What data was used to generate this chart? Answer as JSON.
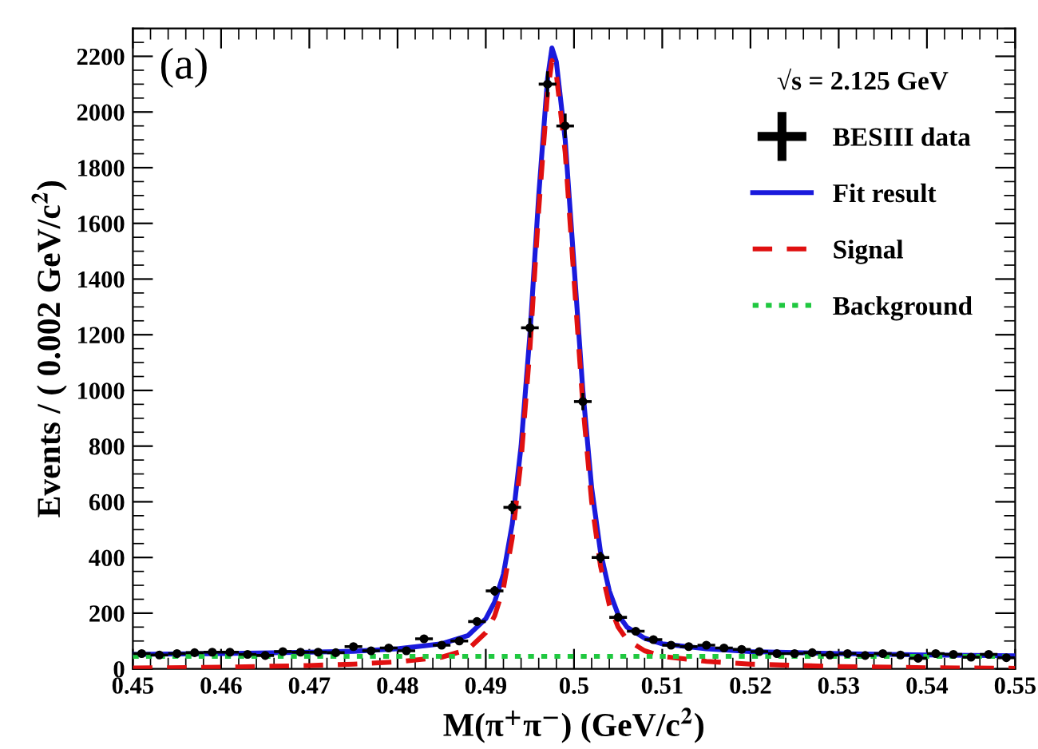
{
  "chart_data": {
    "type": "line",
    "xlabel": "M(π$^{+}$π$^{−}$) (GeV/c$^{2}$)",
    "ylabel": "Events / ( 0.002 GeV/c$^{2}$)",
    "legend_title": "√s = 2.125 GeV",
    "annotations": [
      "(a)"
    ],
    "xlim": [
      0.45,
      0.55
    ],
    "ylim": [
      0,
      2300
    ],
    "xticks": [
      0.45,
      0.46,
      0.47,
      0.48,
      0.49,
      0.5,
      0.51,
      0.52,
      0.53,
      0.54,
      0.55
    ],
    "yticks": [
      0,
      200,
      400,
      600,
      800,
      1000,
      1200,
      1400,
      1600,
      1800,
      2000,
      2200
    ],
    "grid": false,
    "legend": "top right",
    "series": [
      {
        "name": "BESIII data",
        "type": "scatter",
        "color": "#000000",
        "marker": "circle",
        "x": [
          0.451,
          0.453,
          0.455,
          0.457,
          0.459,
          0.461,
          0.463,
          0.465,
          0.467,
          0.469,
          0.471,
          0.473,
          0.475,
          0.477,
          0.479,
          0.481,
          0.483,
          0.485,
          0.487,
          0.489,
          0.491,
          0.493,
          0.495,
          0.497,
          0.499,
          0.501,
          0.503,
          0.505,
          0.507,
          0.509,
          0.511,
          0.513,
          0.515,
          0.517,
          0.519,
          0.521,
          0.523,
          0.525,
          0.527,
          0.529,
          0.531,
          0.533,
          0.535,
          0.537,
          0.539,
          0.541,
          0.543,
          0.545,
          0.547,
          0.549
        ],
        "values": [
          55,
          50,
          55,
          58,
          60,
          60,
          52,
          48,
          62,
          60,
          60,
          58,
          80,
          65,
          75,
          65,
          108,
          85,
          100,
          170,
          280,
          580,
          1225,
          2100,
          1950,
          960,
          400,
          185,
          135,
          105,
          85,
          80,
          85,
          75,
          70,
          62,
          55,
          55,
          58,
          50,
          55,
          48,
          55,
          50,
          38,
          55,
          52,
          42,
          52,
          40
        ],
        "errors": [
          7,
          7,
          7,
          8,
          8,
          8,
          7,
          7,
          8,
          8,
          8,
          8,
          9,
          8,
          9,
          8,
          10,
          9,
          10,
          13,
          17,
          24,
          35,
          46,
          44,
          31,
          20,
          14,
          12,
          10,
          9,
          9,
          9,
          9,
          8,
          8,
          7,
          7,
          8,
          7,
          7,
          7,
          7,
          7,
          6,
          7,
          7,
          6,
          7,
          6
        ],
        "xerrors": [
          0.001,
          0.001,
          0.001,
          0.001,
          0.001,
          0.001,
          0.001,
          0.001,
          0.001,
          0.001,
          0.001,
          0.001,
          0.001,
          0.001,
          0.001,
          0.001,
          0.001,
          0.001,
          0.001,
          0.001,
          0.001,
          0.001,
          0.001,
          0.001,
          0.001,
          0.001,
          0.001,
          0.001,
          0.001,
          0.001,
          0.001,
          0.001,
          0.001,
          0.001,
          0.001,
          0.001,
          0.001,
          0.001,
          0.001,
          0.001,
          0.001,
          0.001,
          0.001,
          0.001,
          0.001,
          0.001,
          0.001,
          0.001,
          0.001,
          0.001
        ]
      },
      {
        "name": "Fit result",
        "color": "#1a1adc",
        "line_style": "solid",
        "x": [
          0.45,
          0.46,
          0.47,
          0.475,
          0.48,
          0.485,
          0.488,
          0.49,
          0.491,
          0.492,
          0.493,
          0.494,
          0.495,
          0.496,
          0.497,
          0.4975,
          0.498,
          0.499,
          0.5,
          0.501,
          0.502,
          0.503,
          0.504,
          0.505,
          0.506,
          0.508,
          0.51,
          0.515,
          0.52,
          0.53,
          0.54,
          0.55
        ],
        "values": [
          52,
          55,
          60,
          63,
          72,
          90,
          120,
          180,
          240,
          340,
          520,
          800,
          1200,
          1700,
          2120,
          2230,
          2180,
          1900,
          1450,
          1000,
          650,
          420,
          280,
          195,
          150,
          110,
          90,
          72,
          62,
          55,
          50,
          47
        ]
      },
      {
        "name": "Signal",
        "color": "#e01010",
        "line_style": "dashed",
        "x": [
          0.45,
          0.46,
          0.47,
          0.475,
          0.48,
          0.485,
          0.488,
          0.49,
          0.491,
          0.492,
          0.493,
          0.494,
          0.495,
          0.496,
          0.497,
          0.4975,
          0.498,
          0.499,
          0.5,
          0.501,
          0.502,
          0.503,
          0.504,
          0.505,
          0.506,
          0.508,
          0.51,
          0.515,
          0.52,
          0.53,
          0.54,
          0.55
        ],
        "values": [
          3,
          6,
          12,
          17,
          25,
          42,
          70,
          130,
          190,
          290,
          470,
          750,
          1150,
          1650,
          2070,
          2185,
          2135,
          1855,
          1400,
          950,
          600,
          370,
          230,
          150,
          105,
          65,
          45,
          27,
          17,
          8,
          4,
          2
        ]
      },
      {
        "name": "Background",
        "color": "#20c840",
        "line_style": "dotted",
        "x": [
          0.45,
          0.55
        ],
        "values": [
          45,
          45
        ]
      }
    ]
  }
}
